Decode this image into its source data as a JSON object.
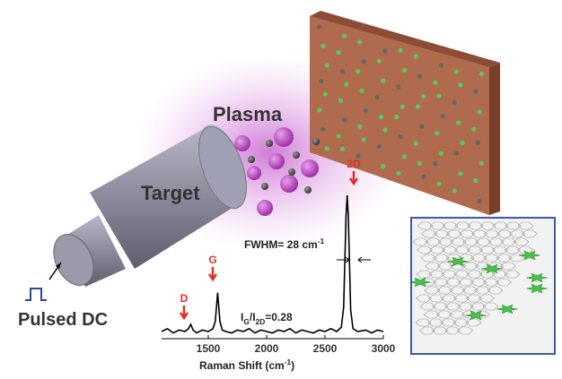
{
  "labels": {
    "plasma": "Plasma",
    "target": "Target",
    "source": "Pulsed DC"
  },
  "spectrum": {
    "type": "line",
    "peaks": [
      "D",
      "G",
      "2D"
    ],
    "fwhm": [
      "FWHM= 28 cm",
      "-1"
    ],
    "ratio": [
      "I",
      "G",
      "/I",
      "2D",
      "=0.28"
    ],
    "x_label": [
      "Raman Shift (cm",
      "-1",
      ")"
    ],
    "xlim": [
      1100,
      3000
    ],
    "ylim": [
      0,
      1
    ],
    "xticks": [
      1500,
      2000,
      2500,
      3000
    ],
    "x": [
      1100,
      1150,
      1200,
      1250,
      1300,
      1330,
      1350,
      1370,
      1400,
      1450,
      1500,
      1540,
      1560,
      1580,
      1600,
      1620,
      1650,
      1700,
      1750,
      1800,
      1850,
      1900,
      1950,
      2000,
      2050,
      2100,
      2150,
      2200,
      2250,
      2300,
      2350,
      2400,
      2450,
      2500,
      2550,
      2600,
      2640,
      2660,
      2680,
      2690,
      2700,
      2720,
      2740,
      2780,
      2850,
      2900,
      2950,
      3000
    ],
    "y": [
      0.05,
      0.07,
      0.04,
      0.06,
      0.05,
      0.07,
      0.1,
      0.06,
      0.04,
      0.06,
      0.05,
      0.07,
      0.12,
      0.32,
      0.12,
      0.06,
      0.05,
      0.04,
      0.06,
      0.05,
      0.07,
      0.04,
      0.06,
      0.05,
      0.04,
      0.06,
      0.05,
      0.07,
      0.04,
      0.06,
      0.05,
      0.04,
      0.06,
      0.05,
      0.07,
      0.05,
      0.08,
      0.22,
      0.85,
      1.0,
      0.85,
      0.2,
      0.07,
      0.05,
      0.06,
      0.04,
      0.06,
      0.05
    ]
  }
}
